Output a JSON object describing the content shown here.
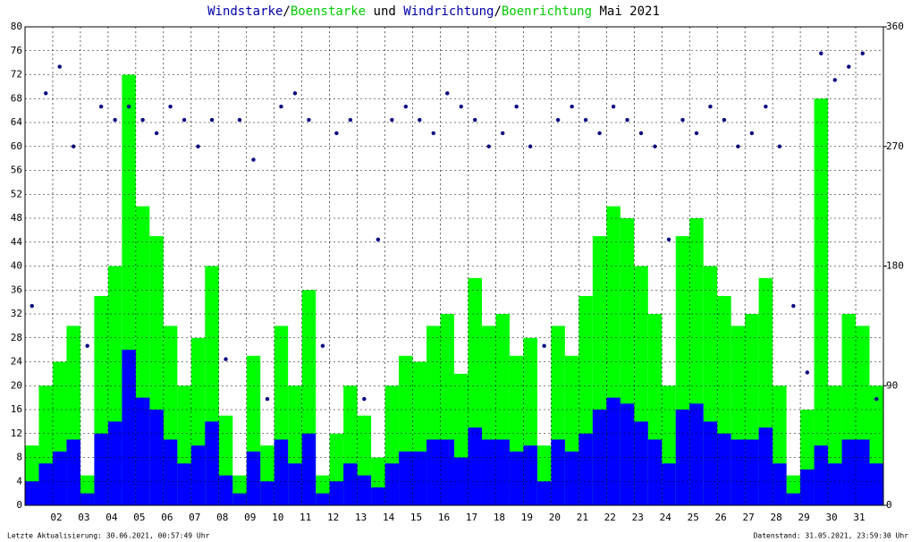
{
  "chart_data": {
    "type": "wind",
    "title_parts": [
      {
        "text": "Windstarke",
        "color": "#0000aa"
      },
      {
        "text": "/",
        "color": "#000000"
      },
      {
        "text": "Boenstarke",
        "color": "#00cc00"
      },
      {
        "text": " und ",
        "color": "#000000"
      },
      {
        "text": "Windrichtung",
        "color": "#0000aa"
      },
      {
        "text": "/",
        "color": "#000000"
      },
      {
        "text": "Boenrichtung",
        "color": "#00cc00"
      },
      {
        "text": " Mai 2021",
        "color": "#000000"
      }
    ],
    "footer_left": "Letzte Aktualisierung: 30.06.2021, 00:57:49 Uhr",
    "footer_right": "Datenstand: 31.05.2021, 23:59:30 Uhr",
    "xlim": [
      1,
      32
    ],
    "xticks": [
      {
        "value": 2,
        "label": "02"
      },
      {
        "value": 3,
        "label": "03"
      },
      {
        "value": 4,
        "label": "04"
      },
      {
        "value": 5,
        "label": "05"
      },
      {
        "value": 6,
        "label": "06"
      },
      {
        "value": 7,
        "label": "07"
      },
      {
        "value": 8,
        "label": "08"
      },
      {
        "value": 9,
        "label": "09"
      },
      10,
      11,
      12,
      13,
      14,
      15,
      16,
      17,
      18,
      19,
      20,
      21,
      22,
      23,
      24,
      25,
      26,
      27,
      28,
      29,
      30,
      31
    ],
    "ylim": [
      0,
      80
    ],
    "yticks": [
      0,
      4,
      8,
      12,
      16,
      20,
      24,
      28,
      32,
      36,
      40,
      44,
      48,
      52,
      56,
      60,
      64,
      68,
      72,
      76,
      80
    ],
    "y2lim": [
      0,
      360
    ],
    "y2ticks": [
      0,
      90,
      180,
      270,
      360
    ],
    "grid": true,
    "x": [
      1,
      1.5,
      2,
      2.5,
      3,
      3.5,
      4,
      4.5,
      5,
      5.5,
      6,
      6.5,
      7,
      7.5,
      8,
      8.5,
      9,
      9.5,
      10,
      10.5,
      11,
      11.5,
      12,
      12.5,
      13,
      13.5,
      14,
      14.5,
      15,
      15.5,
      16,
      16.5,
      17,
      17.5,
      18,
      18.5,
      19,
      19.5,
      20,
      20.5,
      21,
      21.5,
      22,
      22.5,
      23,
      23.5,
      24,
      24.5,
      25,
      25.5,
      26,
      26.5,
      27,
      27.5,
      28,
      28.5,
      29,
      29.5,
      30,
      30.5,
      31,
      31.5
    ],
    "series": [
      {
        "name": "Boenstarke",
        "color": "#00ff00",
        "values": [
          10,
          20,
          24,
          30,
          5,
          35,
          40,
          72,
          50,
          45,
          30,
          20,
          28,
          40,
          15,
          5,
          25,
          10,
          30,
          20,
          36,
          5,
          12,
          20,
          15,
          8,
          20,
          25,
          24,
          30,
          32,
          22,
          38,
          30,
          32,
          25,
          28,
          10,
          30,
          25,
          35,
          45,
          50,
          48,
          40,
          32,
          20,
          45,
          48,
          40,
          35,
          30,
          32,
          38,
          20,
          5,
          16,
          68,
          20,
          32,
          30,
          20
        ]
      },
      {
        "name": "Windstarke",
        "color": "#0000ff",
        "values": [
          4,
          7,
          9,
          11,
          2,
          12,
          14,
          26,
          18,
          16,
          11,
          7,
          10,
          14,
          5,
          2,
          9,
          4,
          11,
          7,
          12,
          2,
          4,
          7,
          5,
          3,
          7,
          9,
          9,
          11,
          11,
          8,
          13,
          11,
          11,
          9,
          10,
          4,
          11,
          9,
          12,
          16,
          18,
          17,
          14,
          11,
          7,
          16,
          17,
          14,
          12,
          11,
          11,
          13,
          7,
          2,
          6,
          10,
          7,
          11,
          11,
          7
        ]
      },
      {
        "name": "Windrichtung",
        "color": "#000080",
        "axis": "y2",
        "values": [
          150,
          310,
          330,
          270,
          120,
          300,
          290,
          300,
          290,
          280,
          300,
          290,
          270,
          290,
          110,
          290,
          260,
          80,
          300,
          310,
          290,
          120,
          280,
          290,
          80,
          200,
          290,
          300,
          290,
          280,
          310,
          300,
          290,
          270,
          280,
          300,
          270,
          120,
          290,
          300,
          290,
          280,
          300,
          290,
          280,
          270,
          200,
          290,
          280,
          300,
          290,
          270,
          280,
          300,
          270,
          150,
          100,
          340,
          320,
          330,
          340,
          80
        ]
      }
    ]
  }
}
